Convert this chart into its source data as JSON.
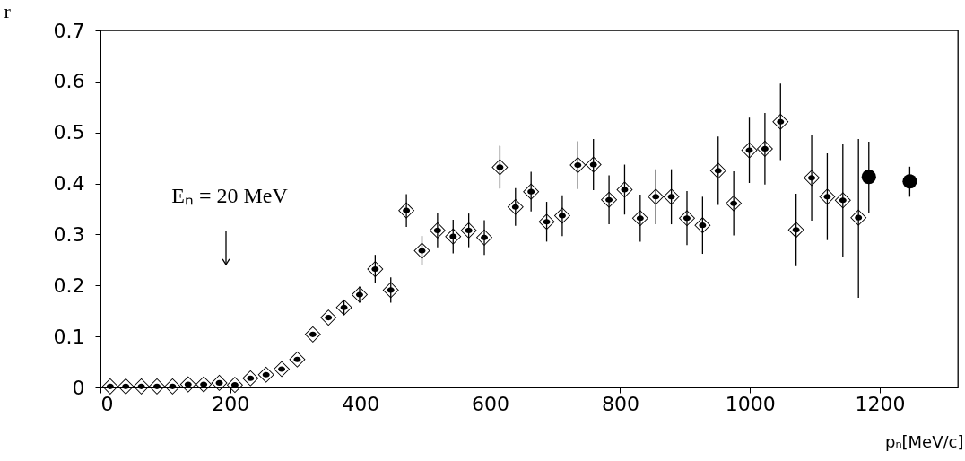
{
  "chart_data": {
    "type": "scatter",
    "xlabel": "pₙ[MeV/c]",
    "ylabel": "r",
    "xlim": [
      0,
      1320
    ],
    "xticks": [
      0,
      200,
      400,
      600,
      800,
      1000,
      1200
    ],
    "ylim": [
      0,
      0.7
    ],
    "yticks": [
      0,
      0.1,
      0.2,
      0.3,
      0.4,
      0.5,
      0.6,
      0.7
    ],
    "grid": false,
    "annotations": [
      "Eₙ = 20 MeV"
    ],
    "series": [
      {
        "marker": "diamond",
        "color": "#000000",
        "x": [
          15,
          39,
          63,
          87,
          111,
          135,
          159,
          183,
          207,
          231,
          255,
          279,
          303,
          327,
          351,
          375,
          399,
          423,
          447,
          471,
          495,
          519,
          543,
          567,
          591,
          615,
          639,
          663,
          687,
          711,
          735,
          759,
          783,
          807,
          831,
          855,
          879,
          903,
          927,
          951,
          975,
          999,
          1023,
          1047,
          1071,
          1095,
          1119,
          1143,
          1167
        ],
        "values": [
          0.002,
          0.002,
          0.002,
          0.002,
          0.002,
          0.006,
          0.006,
          0.009,
          0.005,
          0.018,
          0.025,
          0.036,
          0.055,
          0.104,
          0.137,
          0.157,
          0.182,
          0.232,
          0.191,
          0.347,
          0.268,
          0.308,
          0.296,
          0.308,
          0.294,
          0.432,
          0.354,
          0.384,
          0.325,
          0.337,
          0.436,
          0.437,
          0.368,
          0.388,
          0.332,
          0.374,
          0.374,
          0.332,
          0.318,
          0.425,
          0.361,
          0.465,
          0.468,
          0.521,
          0.309,
          0.411,
          0.374,
          0.367,
          0.333
        ],
        "errors": [
          null,
          null,
          null,
          null,
          null,
          null,
          null,
          null,
          null,
          null,
          null,
          null,
          null,
          null,
          null,
          0.015,
          0.016,
          0.028,
          0.025,
          0.032,
          0.029,
          0.033,
          0.033,
          0.033,
          0.034,
          0.042,
          0.037,
          0.039,
          0.039,
          0.04,
          0.047,
          0.05,
          0.048,
          0.049,
          0.046,
          0.054,
          0.054,
          0.053,
          0.056,
          0.067,
          0.063,
          0.064,
          0.07,
          0.075,
          0.071,
          0.084,
          0.085,
          0.11,
          [
            0.176,
            0.487
          ]
        ]
      },
      {
        "marker": "circle",
        "color": "#000000",
        "x": [
          1183,
          1246
        ],
        "values": [
          0.413,
          0.404
        ],
        "errors": [
          [
            0.343,
            0.482
          ],
          [
            0.374,
            0.433
          ]
        ]
      }
    ]
  }
}
